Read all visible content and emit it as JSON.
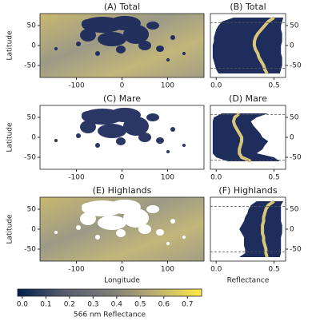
{
  "chart_data": [
    {
      "type": "map",
      "title": "(A) Total",
      "xlim": [
        -180,
        180
      ],
      "ylim": [
        -80,
        80
      ],
      "xticks": [
        -100,
        0,
        100
      ],
      "yticks": [
        -50,
        0,
        50
      ],
      "ylabel": "Latitude",
      "layer": "total"
    },
    {
      "type": "profile",
      "title": "(B) Total",
      "xlim": [
        -0.05,
        0.6
      ],
      "ylim": [
        -80,
        80
      ],
      "xticks": [
        {
          "value": 0,
          "label": "0.0"
        },
        0.5
      ],
      "yticks": [
        -50,
        0,
        50
      ],
      "reference_lines": [
        -57,
        57
      ],
      "band_color": "#1f2d5c",
      "line_color": "#d8c67a",
      "latitude": [
        -70,
        -60,
        -50,
        -40,
        -30,
        -20,
        -10,
        0,
        10,
        20,
        30,
        40,
        50,
        60,
        70
      ],
      "median": [
        0.44,
        0.42,
        0.41,
        0.39,
        0.37,
        0.36,
        0.34,
        0.33,
        0.33,
        0.34,
        0.36,
        0.39,
        0.42,
        0.45,
        0.5
      ],
      "lower": [
        0.02,
        0.0,
        -0.01,
        -0.02,
        -0.03,
        -0.03,
        -0.03,
        -0.03,
        -0.02,
        -0.02,
        -0.01,
        0.0,
        0.02,
        0.05,
        0.15
      ],
      "upper": [
        0.55,
        0.56,
        0.57,
        0.57,
        0.57,
        0.56,
        0.56,
        0.56,
        0.57,
        0.57,
        0.57,
        0.56,
        0.56,
        0.57,
        0.58
      ]
    },
    {
      "type": "map",
      "title": "(C) Mare",
      "xlim": [
        -180,
        180
      ],
      "ylim": [
        -80,
        80
      ],
      "xticks": [
        -100,
        0,
        100
      ],
      "yticks": [
        -50,
        0,
        50
      ],
      "ylabel": "Latitude",
      "layer": "mare"
    },
    {
      "type": "profile",
      "title": "(D) Mare",
      "xlim": [
        -0.05,
        0.6
      ],
      "ylim": [
        -80,
        80
      ],
      "xticks": [
        {
          "value": 0,
          "label": "0.0"
        },
        0.5
      ],
      "yticks": [
        -50,
        0,
        50
      ],
      "reference_lines": [
        -57,
        57
      ],
      "band_color": "#1f2d5c",
      "line_color": "#d8c67a",
      "latitude": [
        -60,
        -50,
        -40,
        -30,
        -20,
        -10,
        0,
        10,
        20,
        30,
        40,
        50,
        60
      ],
      "median": [
        0.3,
        0.22,
        0.2,
        0.2,
        0.21,
        0.22,
        0.22,
        0.2,
        0.18,
        0.16,
        0.15,
        0.16,
        0.2
      ],
      "lower": [
        0.1,
        0.0,
        -0.03,
        -0.03,
        -0.03,
        -0.03,
        -0.03,
        -0.03,
        -0.03,
        -0.03,
        -0.03,
        -0.02,
        0.05
      ],
      "upper": [
        0.55,
        0.5,
        0.35,
        0.4,
        0.42,
        0.45,
        0.4,
        0.38,
        0.35,
        0.32,
        0.3,
        0.35,
        0.45
      ]
    },
    {
      "type": "map",
      "title": "(E) Highlands",
      "xlim": [
        -180,
        180
      ],
      "ylim": [
        -80,
        80
      ],
      "xticks": [
        -100,
        0,
        100
      ],
      "yticks": [
        -50,
        0,
        50
      ],
      "ylabel": "Latitude",
      "xlabel": "Longitude",
      "layer": "highlands"
    },
    {
      "type": "profile",
      "title": "(F) Highlands",
      "xlim": [
        -0.05,
        0.6
      ],
      "ylim": [
        -80,
        80
      ],
      "xticks": [
        {
          "value": 0,
          "label": "0.0"
        },
        0.5
      ],
      "yticks": [
        -50,
        0,
        50
      ],
      "reference_lines": [
        -57,
        57
      ],
      "band_color": "#1f2d5c",
      "line_color": "#d8c67a",
      "xlabel": "Reflectance",
      "latitude": [
        -70,
        -60,
        -50,
        -40,
        -30,
        -20,
        -10,
        0,
        10,
        20,
        30,
        40,
        50,
        60,
        70
      ],
      "median": [
        0.44,
        0.43,
        0.43,
        0.42,
        0.41,
        0.41,
        0.4,
        0.4,
        0.4,
        0.41,
        0.41,
        0.42,
        0.43,
        0.45,
        0.5
      ],
      "lower": [
        0.2,
        0.25,
        0.25,
        0.24,
        0.24,
        0.24,
        0.22,
        0.2,
        0.22,
        0.24,
        0.25,
        0.27,
        0.28,
        0.3,
        0.35
      ],
      "upper": [
        0.55,
        0.56,
        0.56,
        0.56,
        0.56,
        0.56,
        0.57,
        0.57,
        0.57,
        0.56,
        0.56,
        0.56,
        0.56,
        0.56,
        0.58
      ]
    },
    {
      "type": "colorbar",
      "label": "566 nm Reflectance",
      "clim": [
        -0.02,
        0.76
      ],
      "ticks": [
        {
          "value": 0,
          "label": "0.0"
        },
        0.1,
        0.2,
        0.3,
        0.4,
        0.5,
        0.6,
        0.7
      ],
      "colormap": [
        "#00204c",
        "#575c6d",
        "#7c7b78",
        "#bcaf6f",
        "#ffe945"
      ]
    }
  ]
}
